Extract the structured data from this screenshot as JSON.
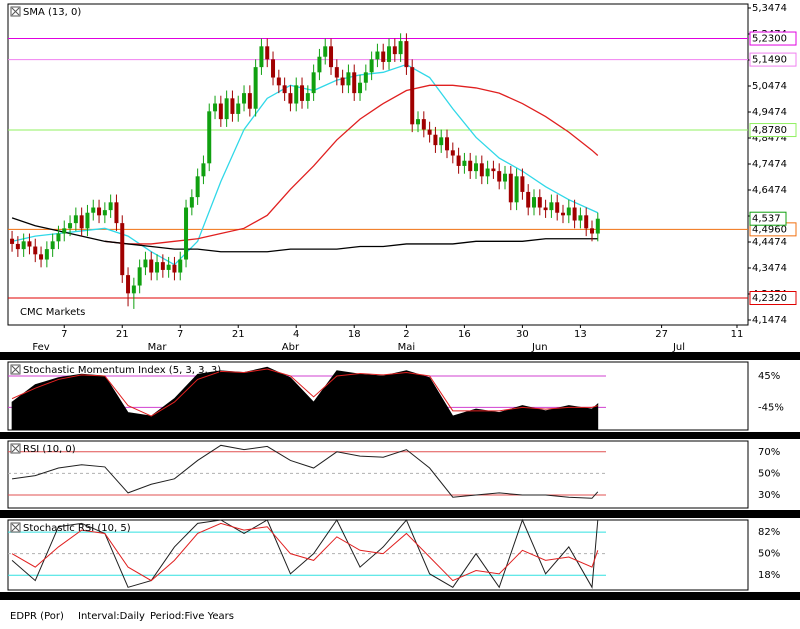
{
  "chart_data": [
    {
      "type": "candlestick",
      "source": "CMC Markets",
      "xlim": [
        -0.7,
        126.9
      ],
      "xticks": [
        {
          "value": 9,
          "label": "7"
        },
        {
          "value": 19,
          "label": "21"
        },
        {
          "value": 29,
          "label": "7"
        },
        {
          "value": 39,
          "label": "21"
        },
        {
          "value": 49,
          "label": "4"
        },
        {
          "value": 59,
          "label": "18"
        },
        {
          "value": 68,
          "label": "2"
        },
        {
          "value": 78,
          "label": "16"
        },
        {
          "value": 88,
          "label": "30"
        },
        {
          "value": 98,
          "label": "13"
        },
        {
          "value": 112,
          "label": "27"
        },
        {
          "value": 125,
          "label": "11"
        }
      ],
      "month_ticks": [
        {
          "value": 5,
          "label": "Fev"
        },
        {
          "value": 25,
          "label": "Mar"
        },
        {
          "value": 48,
          "label": "Abr"
        },
        {
          "value": 68,
          "label": "Mai"
        },
        {
          "value": 91,
          "label": "Jun"
        },
        {
          "value": 115,
          "label": "Jul"
        }
      ],
      "ylim": [
        4.1474,
        5.3474
      ],
      "yticks": [
        {
          "value": 5.3474,
          "label": "5,3474"
        },
        {
          "value": 5.2474,
          "label": "5,2474"
        },
        {
          "value": 5.1474,
          "label": "5,1474"
        },
        {
          "value": 5.0474,
          "label": "5,0474"
        },
        {
          "value": 4.9474,
          "label": "4,9474"
        },
        {
          "value": 4.8474,
          "label": "4,8474"
        },
        {
          "value": 4.7474,
          "label": "4,7474"
        },
        {
          "value": 4.6474,
          "label": "4,6474"
        },
        {
          "value": 4.5474,
          "label": "4,5474"
        },
        {
          "value": 4.4474,
          "label": "4,4474"
        },
        {
          "value": 4.3474,
          "label": "4,3474"
        },
        {
          "value": 4.2474,
          "label": "4,2474"
        },
        {
          "value": 4.1474,
          "label": "4,1474"
        }
      ],
      "up_color": "#10a010",
      "down_color": "#a00000",
      "open": [
        4.46,
        4.44,
        4.42,
        4.45,
        4.43,
        4.4,
        4.38,
        4.42,
        4.45,
        4.48,
        4.5,
        4.52,
        4.55,
        4.5,
        4.56,
        4.58,
        4.55,
        4.57,
        4.6,
        4.52,
        4.32,
        4.25,
        4.28,
        4.35,
        4.38,
        4.33,
        4.37,
        4.34,
        4.36,
        4.33,
        4.38,
        4.58,
        4.62,
        4.7,
        4.75,
        4.95,
        4.98,
        4.92,
        5.0,
        4.94,
        4.98,
        5.02,
        4.96,
        5.12,
        5.2,
        5.15,
        5.08,
        5.05,
        5.02,
        4.98,
        5.05,
        4.99,
        5.02,
        5.1,
        5.16,
        5.2,
        5.12,
        5.08,
        5.05,
        5.1,
        5.02,
        5.06,
        5.1,
        5.15,
        5.18,
        5.14,
        5.2,
        5.17,
        5.22,
        5.12,
        4.9,
        4.92,
        4.88,
        4.86,
        4.82,
        4.85,
        4.8,
        4.78,
        4.74,
        4.76,
        4.72,
        4.75,
        4.7,
        4.73,
        4.72,
        4.68,
        4.71,
        4.6,
        4.7,
        4.64,
        4.58,
        4.62,
        4.58,
        4.57,
        4.6,
        4.56,
        4.55,
        4.58,
        4.53,
        4.55,
        4.5,
        4.48
      ],
      "high": [
        4.49,
        4.47,
        4.48,
        4.48,
        4.46,
        4.43,
        4.45,
        4.48,
        4.51,
        4.53,
        4.55,
        4.58,
        4.58,
        4.59,
        4.61,
        4.61,
        4.6,
        4.63,
        4.63,
        4.55,
        4.35,
        4.31,
        4.38,
        4.41,
        4.41,
        4.4,
        4.4,
        4.39,
        4.39,
        4.41,
        4.61,
        4.65,
        4.73,
        4.78,
        4.98,
        5.01,
        5.01,
        5.03,
        5.03,
        5.01,
        5.05,
        5.05,
        5.15,
        5.23,
        5.23,
        5.18,
        5.11,
        5.08,
        5.05,
        5.08,
        5.08,
        5.05,
        5.13,
        5.19,
        5.23,
        5.23,
        5.15,
        5.11,
        5.13,
        5.13,
        5.09,
        5.13,
        5.18,
        5.21,
        5.21,
        5.23,
        5.23,
        5.25,
        5.25,
        5.15,
        4.95,
        4.95,
        4.91,
        4.89,
        4.88,
        4.88,
        4.83,
        4.81,
        4.79,
        4.79,
        4.78,
        4.78,
        4.76,
        4.76,
        4.75,
        4.74,
        4.74,
        4.73,
        4.73,
        4.67,
        4.65,
        4.65,
        4.61,
        4.63,
        4.63,
        4.59,
        4.61,
        4.61,
        4.58,
        4.58,
        4.53,
        4.56
      ],
      "low": [
        4.41,
        4.39,
        4.39,
        4.4,
        4.37,
        4.35,
        4.35,
        4.39,
        4.42,
        4.45,
        4.47,
        4.49,
        4.47,
        4.47,
        4.53,
        4.52,
        4.52,
        4.54,
        4.49,
        4.29,
        4.2,
        4.19,
        4.25,
        4.32,
        4.3,
        4.3,
        4.31,
        4.31,
        4.3,
        4.3,
        4.35,
        4.55,
        4.59,
        4.67,
        4.72,
        4.92,
        4.89,
        4.89,
        4.91,
        4.91,
        4.95,
        4.93,
        4.93,
        5.09,
        5.12,
        5.05,
        5.02,
        4.99,
        4.95,
        4.95,
        4.96,
        4.96,
        4.99,
        5.07,
        5.13,
        5.09,
        5.05,
        5.02,
        5.02,
        4.99,
        4.99,
        5.03,
        5.07,
        5.12,
        5.11,
        5.11,
        5.14,
        5.14,
        5.09,
        4.87,
        4.87,
        4.85,
        4.83,
        4.79,
        4.79,
        4.77,
        4.75,
        4.71,
        4.71,
        4.69,
        4.69,
        4.67,
        4.67,
        4.69,
        4.65,
        4.65,
        4.57,
        4.57,
        4.61,
        4.55,
        4.55,
        4.55,
        4.54,
        4.54,
        4.53,
        4.52,
        4.52,
        4.5,
        4.5,
        4.47,
        4.45,
        4.45
      ],
      "close": [
        4.44,
        4.42,
        4.45,
        4.43,
        4.4,
        4.38,
        4.42,
        4.45,
        4.48,
        4.5,
        4.52,
        4.55,
        4.5,
        4.56,
        4.58,
        4.55,
        4.57,
        4.6,
        4.52,
        4.32,
        4.25,
        4.28,
        4.35,
        4.38,
        4.33,
        4.37,
        4.34,
        4.36,
        4.33,
        4.38,
        4.58,
        4.62,
        4.7,
        4.75,
        4.95,
        4.98,
        4.92,
        5.0,
        4.94,
        4.98,
        5.02,
        4.96,
        5.12,
        5.2,
        5.15,
        5.08,
        5.05,
        5.02,
        4.98,
        5.05,
        4.99,
        5.02,
        5.1,
        5.16,
        5.2,
        5.12,
        5.08,
        5.05,
        5.1,
        5.02,
        5.06,
        5.1,
        5.15,
        5.18,
        5.14,
        5.2,
        5.17,
        5.22,
        5.12,
        4.9,
        4.92,
        4.88,
        4.86,
        4.82,
        4.85,
        4.8,
        4.78,
        4.74,
        4.76,
        4.72,
        4.75,
        4.7,
        4.73,
        4.72,
        4.68,
        4.71,
        4.6,
        4.7,
        4.64,
        4.58,
        4.62,
        4.58,
        4.57,
        4.6,
        4.56,
        4.55,
        4.58,
        4.53,
        4.55,
        4.5,
        4.48,
        4.537
      ],
      "line_x": [
        0,
        4,
        8,
        12,
        16,
        20,
        24,
        28,
        32,
        36,
        40,
        44,
        48,
        52,
        56,
        60,
        64,
        68,
        72,
        76,
        80,
        84,
        88,
        92,
        96,
        100,
        101
      ],
      "lines": [
        {
          "name": "SMA (13, 0)",
          "color": "#30d8e8",
          "values": [
            4.45,
            4.47,
            4.48,
            4.49,
            4.5,
            4.47,
            4.41,
            4.36,
            4.45,
            4.68,
            4.88,
            5.0,
            5.05,
            5.03,
            5.07,
            5.09,
            5.1,
            5.13,
            5.08,
            4.96,
            4.85,
            4.77,
            4.72,
            4.66,
            4.61,
            4.57,
            4.56
          ]
        },
        {
          "color": "#e02020",
          "values": [
            null,
            null,
            null,
            null,
            4.45,
            4.44,
            4.44,
            4.45,
            4.46,
            4.48,
            4.5,
            4.55,
            4.65,
            4.74,
            4.84,
            4.92,
            4.98,
            5.03,
            5.05,
            5.05,
            5.04,
            5.02,
            4.98,
            4.93,
            4.87,
            4.8,
            4.78
          ]
        },
        {
          "color": "#000000",
          "values": [
            4.54,
            4.51,
            4.49,
            4.47,
            4.45,
            4.44,
            4.43,
            4.42,
            4.42,
            4.41,
            4.41,
            4.41,
            4.42,
            4.42,
            4.42,
            4.43,
            4.43,
            4.44,
            4.44,
            4.44,
            4.45,
            4.45,
            4.45,
            4.46,
            4.46,
            4.46,
            4.46
          ]
        }
      ],
      "levels": [
        {
          "value": 5.23,
          "label": "5,2300",
          "color": "#e000e0"
        },
        {
          "value": 5.149,
          "label": "5,1490",
          "color": "#f080f0"
        },
        {
          "value": 4.878,
          "label": "4,8780",
          "color": "#90f060"
        },
        {
          "value": 4.496,
          "label": "4,4960",
          "color": "#f07010"
        },
        {
          "value": 4.232,
          "label": "4,2320",
          "color": "#e00000"
        }
      ],
      "last": {
        "value": 4.537,
        "label": "4,537",
        "color": "#10a010"
      }
    },
    {
      "type": "oscillator",
      "title": "Stochastic Momentum Index (5, 3, 3, 3)",
      "xlim": [
        -0.7,
        126.9
      ],
      "ylim": [
        -110,
        85
      ],
      "yticks": [
        {
          "value": 45,
          "label": "45%"
        },
        {
          "value": -45,
          "label": "-45%"
        }
      ],
      "guide_colors": [
        "#d040d0",
        "#d040d0"
      ],
      "guide_dash": [
        false,
        false
      ],
      "x": [
        0,
        4,
        8,
        12,
        16,
        20,
        24,
        28,
        32,
        36,
        40,
        44,
        48,
        52,
        56,
        60,
        64,
        68,
        72,
        76,
        80,
        84,
        88,
        92,
        96,
        100,
        101
      ],
      "series": [
        {
          "color": "#000000",
          "fill": true,
          "values": [
            -30,
            20,
            40,
            50,
            45,
            -60,
            -70,
            -20,
            50,
            60,
            55,
            70,
            40,
            -30,
            60,
            50,
            45,
            60,
            40,
            -70,
            -50,
            -60,
            -40,
            -55,
            -40,
            -50,
            -35
          ]
        },
        {
          "color": "#e02020",
          "fill": false,
          "values": [
            -20,
            10,
            35,
            48,
            45,
            -40,
            -70,
            -30,
            35,
            58,
            55,
            65,
            45,
            -15,
            45,
            52,
            48,
            55,
            45,
            -55,
            -55,
            -55,
            -45,
            -50,
            -45,
            -45,
            -40
          ]
        }
      ]
    },
    {
      "type": "oscillator",
      "title": "RSI (10, 0)",
      "xlim": [
        -0.7,
        126.9
      ],
      "ylim": [
        18,
        80
      ],
      "yticks": [
        {
          "value": 70,
          "label": "70%"
        },
        {
          "value": 50,
          "label": "50%"
        },
        {
          "value": 30,
          "label": "30%"
        }
      ],
      "guide_colors": [
        "#e05050",
        "#b0b0b0",
        "#e05050"
      ],
      "guide_dash": [
        false,
        true,
        false
      ],
      "x": [
        0,
        4,
        8,
        12,
        16,
        20,
        24,
        28,
        32,
        36,
        40,
        44,
        48,
        52,
        56,
        60,
        64,
        68,
        72,
        76,
        80,
        84,
        88,
        92,
        96,
        100,
        101
      ],
      "series": [
        {
          "color": "#202020",
          "fill": false,
          "values": [
            45,
            48,
            55,
            58,
            56,
            32,
            40,
            45,
            62,
            76,
            72,
            75,
            62,
            55,
            70,
            66,
            65,
            72,
            55,
            28,
            30,
            32,
            30,
            30,
            28,
            27,
            33
          ]
        }
      ]
    },
    {
      "type": "oscillator",
      "title": "Stochastic RSI (10, 5)",
      "xlim": [
        -0.7,
        126.9
      ],
      "ylim": [
        -4,
        100
      ],
      "yticks": [
        {
          "value": 82,
          "label": "82%"
        },
        {
          "value": 50,
          "label": "50%"
        },
        {
          "value": 18,
          "label": "18%"
        }
      ],
      "guide_colors": [
        "#30e0e0",
        "#b0b0b0",
        "#30e0e0"
      ],
      "guide_dash": [
        false,
        true,
        false
      ],
      "x": [
        0,
        4,
        8,
        12,
        16,
        20,
        24,
        28,
        32,
        36,
        40,
        44,
        48,
        52,
        56,
        60,
        64,
        68,
        72,
        76,
        80,
        84,
        88,
        92,
        96,
        100,
        101
      ],
      "series": [
        {
          "color": "#202020",
          "fill": false,
          "values": [
            40,
            10,
            90,
            95,
            80,
            0,
            10,
            60,
            95,
            100,
            80,
            100,
            20,
            50,
            100,
            30,
            60,
            100,
            20,
            0,
            50,
            0,
            100,
            20,
            60,
            0,
            100
          ]
        },
        {
          "color": "#e02020",
          "fill": false,
          "values": [
            50,
            30,
            60,
            85,
            80,
            30,
            10,
            40,
            80,
            95,
            85,
            90,
            50,
            40,
            75,
            55,
            50,
            80,
            45,
            10,
            25,
            20,
            55,
            40,
            45,
            30,
            55
          ]
        }
      ]
    }
  ],
  "footer": {
    "symbol": "EDPR (Por)",
    "interval": "Interval:Daily",
    "period": "Period:Five Years"
  }
}
